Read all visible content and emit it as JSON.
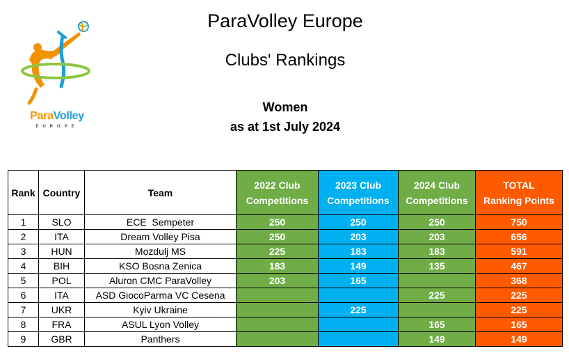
{
  "header": {
    "title": "ParaVolley Europe",
    "subtitle": "Clubs' Rankings",
    "category": "Women",
    "date_line": "as at 1st July 2024"
  },
  "logo": {
    "word_part1": "Para",
    "word_part2": "Volley",
    "sub": "EUROPE",
    "colors": {
      "orange": "#f39200",
      "green": "#8dc63f",
      "blue": "#1d9fd8"
    }
  },
  "table": {
    "columns": {
      "rank": "Rank",
      "country": "Country",
      "team": "Team",
      "c2022": [
        "2022 Club",
        "Competitions"
      ],
      "c2023": [
        "2023 Club",
        "Competitions"
      ],
      "c2024": [
        "2024 Club",
        "Competitions"
      ],
      "total": [
        "TOTAL",
        "Ranking Points"
      ]
    },
    "colors": {
      "c2022": "#70ad47",
      "c2023": "#00b0f0",
      "c2024": "#70ad47",
      "total": "#ff5a00"
    },
    "rows": [
      {
        "rank": "1",
        "country": "SLO",
        "team": "ECE  Sempeter",
        "c2022": "250",
        "c2023": "250",
        "c2024": "250",
        "total": "750"
      },
      {
        "rank": "2",
        "country": "ITA",
        "team": "Dream Volley Pisa",
        "c2022": "250",
        "c2023": "203",
        "c2024": "203",
        "total": "656"
      },
      {
        "rank": "3",
        "country": "HUN",
        "team": "Mozdulj MS",
        "c2022": "225",
        "c2023": "183",
        "c2024": "183",
        "total": "591"
      },
      {
        "rank": "4",
        "country": "BIH",
        "team": "KSO Bosna Zenica",
        "c2022": "183",
        "c2023": "149",
        "c2024": "135",
        "total": "467"
      },
      {
        "rank": "5",
        "country": "POL",
        "team": "Aluron CMC ParaVolley",
        "c2022": "203",
        "c2023": "165",
        "c2024": "",
        "total": "368"
      },
      {
        "rank": "6",
        "country": "ITA",
        "team": "ASD GiocoParma VC Cesena",
        "c2022": "",
        "c2023": "",
        "c2024": "225",
        "total": "225"
      },
      {
        "rank": "7",
        "country": "UKR",
        "team": "Kyiv Ukraine",
        "c2022": "",
        "c2023": "225",
        "c2024": "",
        "total": "225"
      },
      {
        "rank": "8",
        "country": "FRA",
        "team": "ASUL Lyon Volley",
        "c2022": "",
        "c2023": "",
        "c2024": "165",
        "total": "165"
      },
      {
        "rank": "9",
        "country": "GBR",
        "team": "Panthers",
        "c2022": "",
        "c2023": "",
        "c2024": "149",
        "total": "149"
      }
    ]
  }
}
